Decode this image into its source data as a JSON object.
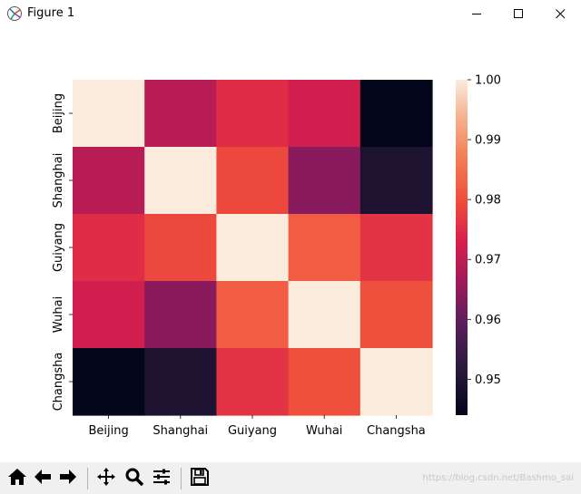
{
  "window": {
    "title": "Figure 1",
    "icons": {
      "app": "matplotlib-figure-icon",
      "minimize": "minimize-icon",
      "maximize": "maximize-icon",
      "close": "close-icon"
    }
  },
  "toolbar": {
    "tools": [
      {
        "name": "home-icon"
      },
      {
        "name": "back-arrow-icon"
      },
      {
        "name": "forward-arrow-icon"
      },
      {
        "name": "pan-move-icon"
      },
      {
        "name": "zoom-magnifier-icon"
      },
      {
        "name": "configure-subplots-icon"
      },
      {
        "name": "save-floppy-icon"
      }
    ],
    "watermark": "https://blog.csdn.net/Bashmo_sai"
  },
  "chart_data": {
    "type": "heatmap",
    "title": "",
    "xlabel": "",
    "ylabel": "",
    "x_categories": [
      "Beijing",
      "Shanghai",
      "Guiyang",
      "Wuhai",
      "Changsha"
    ],
    "y_categories": [
      "Beijing",
      "Shanghai",
      "Guiyang",
      "Wuhai",
      "Changsha"
    ],
    "values": [
      [
        1.0,
        0.969,
        0.975,
        0.972,
        0.944
      ],
      [
        0.969,
        1.0,
        0.979,
        0.964,
        0.949
      ],
      [
        0.975,
        0.979,
        1.0,
        0.982,
        0.976
      ],
      [
        0.972,
        0.964,
        0.982,
        1.0,
        0.98
      ],
      [
        0.944,
        0.949,
        0.976,
        0.98,
        1.0
      ]
    ],
    "colorbar": {
      "colormap": "rocket",
      "vmin": 0.944,
      "vmax": 1.0,
      "ticks": [
        0.95,
        0.96,
        0.97,
        0.98,
        0.99,
        1.0
      ],
      "tick_labels": [
        "0.95",
        "0.96",
        "0.97",
        "0.98",
        "0.99",
        "1.00"
      ]
    },
    "grid": false
  }
}
